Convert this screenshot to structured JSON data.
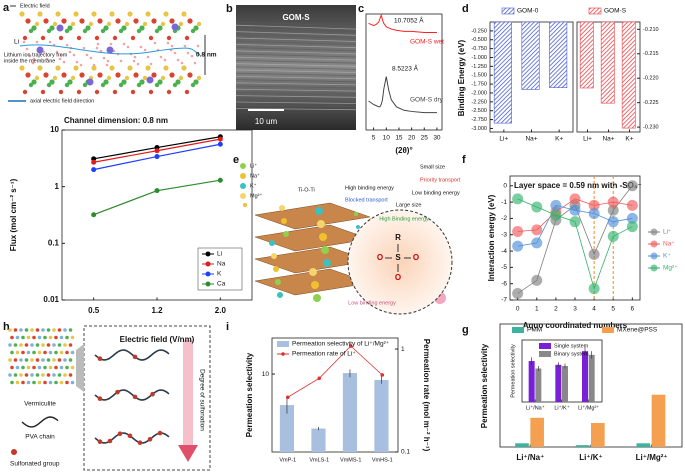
{
  "panel_labels": [
    "a",
    "b",
    "c",
    "d",
    "e",
    "f",
    "g",
    "h",
    "i"
  ],
  "illustrations": {
    "a": {
      "electric_field": "Electric field",
      "ion": "Li",
      "trajectory": [
        "Lithium ion trajectory from",
        "inside the membrane"
      ],
      "spacing": "0.8 nm",
      "direction": "axial electric field direction"
    },
    "b": {
      "sample": "GOM-S",
      "scale_bar": "10 um"
    },
    "e": {
      "ions": [
        "Li⁺",
        "Na⁺",
        "K⁺",
        "Mg²⁺"
      ],
      "linker": "Ti-O-Ti",
      "high_binding": "High binding energy",
      "low_binding": "Low binding energy",
      "small_size": "Small size",
      "large_size": "Large size",
      "priority": "Priority transport",
      "blocked": "Blocked transport",
      "high_binding_2": "High Binding energy",
      "low_binding_2": "Low binding energy",
      "group": [
        "R",
        "S",
        "O",
        "O",
        "O"
      ]
    },
    "h": {
      "vermiculite": "Vermiculite",
      "pva": "PVA chain",
      "sulfonated": "Sulfonated group",
      "degree": "Degree of sulfonation"
    }
  },
  "chart_data": [
    {
      "type": "line",
      "title": "Channel dimension: 0.8 nm",
      "x_label": "Electric field (V/nm)",
      "y_label": "Flux (mol cm⁻² s⁻¹)",
      "categories": [
        "0.5",
        "1.2",
        "2.0"
      ],
      "ylog": true,
      "ylim": [
        0.01,
        10
      ],
      "yticks": [
        0.01,
        0.1,
        1,
        10
      ],
      "legend": "lower right",
      "series": [
        {
          "name": "Li",
          "color": "#000000",
          "values": [
            3.1,
            4.9,
            7.6
          ]
        },
        {
          "name": "Na",
          "color": "#e41a1c",
          "values": [
            2.7,
            4.3,
            6.9
          ]
        },
        {
          "name": "K",
          "color": "#1f3fff",
          "values": [
            2.0,
            3.4,
            5.6
          ]
        },
        {
          "name": "Ca",
          "color": "#2e8b2e",
          "values": [
            0.32,
            0.85,
            1.3
          ]
        }
      ]
    },
    {
      "type": "line",
      "x_label": "(2θ)°",
      "x": [
        3,
        5,
        6,
        7,
        7.5,
        8,
        8.5,
        9,
        10,
        11,
        12,
        14,
        17,
        20,
        25,
        30
      ],
      "xlim": [
        2,
        32
      ],
      "xticks": [
        5,
        10,
        15,
        20,
        25,
        30
      ],
      "ylim": [
        0,
        10
      ],
      "markers": false,
      "legend": "inline",
      "annotations": [
        "10.7052 Å",
        "8.5223 Å"
      ],
      "series": [
        {
          "name": "GOM-S wet",
          "color": "#ff2020",
          "values": [
            9.2,
            9.0,
            9.1,
            9.3,
            9.6,
            9.9,
            9.5,
            9.2,
            8.9,
            8.8,
            8.7,
            8.6,
            8.5,
            8.5,
            8.4,
            8.4
          ]
        },
        {
          "name": "GOM-S dry",
          "color": "#444444",
          "values": [
            2.5,
            2.2,
            2.1,
            2.0,
            2.0,
            2.2,
            2.6,
            3.5,
            4.6,
            3.4,
            2.6,
            2.0,
            1.7,
            1.6,
            1.5,
            1.5
          ]
        }
      ]
    },
    {
      "type": "bar",
      "y_label": "Binding Energy (eV)",
      "categories": [
        "Li+",
        "Na+",
        "K+"
      ],
      "ylim": [
        -3.1,
        0
      ],
      "yticks": [
        {
          "value": -3,
          "label": "-3.000"
        },
        {
          "value": -2.75,
          "label": "-2.750"
        },
        {
          "value": -2.5,
          "label": "-2.500"
        },
        {
          "value": -2.25,
          "label": "-2.250"
        },
        {
          "value": -2,
          "label": "-2.000"
        },
        {
          "value": -1.75,
          "label": "-1.750"
        },
        {
          "value": -1.5,
          "label": "-1.500"
        },
        {
          "value": -1.25,
          "label": "-1.250"
        },
        {
          "value": -1,
          "label": "-1.000"
        },
        {
          "value": -0.75,
          "label": "-0.750"
        },
        {
          "value": -0.5,
          "label": "-0.500"
        },
        {
          "value": -0.25,
          "label": "-0.250"
        }
      ],
      "legend": "top",
      "series": [
        {
          "name": "GOM-0",
          "color": "#4a5fd0",
          "hatch": true,
          "values": [
            -2.85,
            -1.9,
            -1.85
          ]
        }
      ]
    },
    {
      "type": "bar",
      "categories": [
        "Li+",
        "Na+",
        "K+"
      ],
      "ylim": [
        -0.231,
        -0.2085
      ],
      "yticks": [
        {
          "value": -0.21,
          "label": "-0.210"
        },
        -0.215,
        {
          "value": -0.22,
          "label": "-0.220"
        },
        -0.225,
        {
          "value": -0.23,
          "label": "-0.230"
        }
      ],
      "legend": "top",
      "series": [
        {
          "name": "GOM-S",
          "color": "#e8454a",
          "hatch": true,
          "values": [
            -0.222,
            -0.2251,
            -0.2302
          ]
        }
      ]
    },
    {
      "type": "line",
      "title": "Layer space = 0.59 nm with -SO₃⁻",
      "x_label": "Aquo coordinated numbers",
      "y_label": "Interaction energy (eV)",
      "x": [
        0,
        1,
        2,
        3,
        4,
        5,
        6
      ],
      "xlim": [
        -0.4,
        6.4
      ],
      "xticks": [
        0,
        1,
        2,
        3,
        4,
        5,
        6
      ],
      "ylim": [
        -7,
        0.6
      ],
      "yticks": [
        -7,
        -6,
        -5,
        -4,
        -3,
        -2,
        -1,
        0
      ],
      "reference_lines": [
        4,
        5
      ],
      "legend": "right",
      "series": [
        {
          "name": "Li⁺",
          "color": "#7f7f7f",
          "values": [
            -6.6,
            -5.8,
            -2.1,
            -1.2,
            -4.2,
            -1.5,
            0
          ]
        },
        {
          "name": "Na⁺",
          "color": "#f05a5a",
          "values": [
            -2.8,
            -2.7,
            -1.6,
            -0.8,
            -1.2,
            -1.0,
            -1.2
          ]
        },
        {
          "name": "K⁺",
          "color": "#4f8fd8",
          "values": [
            -3.7,
            -3.5,
            -1.2,
            -1.5,
            -1.7,
            -2.2,
            -2.0
          ]
        },
        {
          "name": "Mg²⁺",
          "color": "#33b36b",
          "values": [
            -0.8,
            -1.3,
            -1.8,
            -2.2,
            -6.3,
            -3.1,
            -2.5
          ]
        }
      ]
    },
    {
      "type": "bar",
      "y_label": "Permeation selectivity",
      "y2_label": "Permeation rate (mol m⁻² h⁻¹)",
      "categories": [
        "VmP-1",
        "VmLS-1",
        "VmMS-1",
        "VmHS-1"
      ],
      "ylog": true,
      "ylim": [
        1,
        29
      ],
      "yticks": [
        10
      ],
      "y2log": true,
      "y2lim": [
        0.1,
        1.28
      ],
      "y2ticks": [
        0.1,
        1
      ],
      "legend": "upper left",
      "series": [
        {
          "name": "Permeation selectivity of Li⁺/Mg²⁺",
          "color": "#a9bfe0",
          "values": [
            4,
            2,
            10.3,
            8.4
          ],
          "errors": [
            0.9,
            0.1,
            1.2,
            0.9
          ]
        },
        {
          "name": "Permeation rate of Li⁺",
          "type": "line",
          "axis": "y2",
          "color": "#e03030",
          "values": [
            0.34,
            0.52,
            1.07,
            0.56
          ]
        }
      ]
    },
    {
      "type": "bar",
      "y_label": "Permeation selectivity",
      "categories": [
        "Li⁺/Na⁺",
        "Li⁺/K⁺",
        "Li⁺/Mg²⁺"
      ],
      "ylim": [
        0,
        40
      ],
      "legend": "top",
      "series": [
        {
          "name": "PMM",
          "color": "#3cb3a0",
          "values": [
            1.2,
            0.6,
            1.2
          ]
        },
        {
          "name": "MXene@PSS",
          "color": "#f5a050",
          "values": [
            9.5,
            7.8,
            17
          ]
        }
      ]
    },
    {
      "type": "bar",
      "y_label": "Permeation selectivity",
      "categories": [
        "Li⁺/Na⁺",
        "Li⁺/K⁺",
        "Li⁺/Mg²⁺"
      ],
      "ylim": [
        0,
        50
      ],
      "legend": "upper left",
      "series": [
        {
          "name": "Single system",
          "color": "#7a1fd8",
          "values": [
            33,
            30,
            41
          ],
          "errors": [
            3,
            2,
            3
          ]
        },
        {
          "name": "Binary system",
          "color": "#888888",
          "values": [
            27,
            29,
            38
          ],
          "errors": [
            2,
            2,
            3
          ]
        }
      ]
    }
  ]
}
